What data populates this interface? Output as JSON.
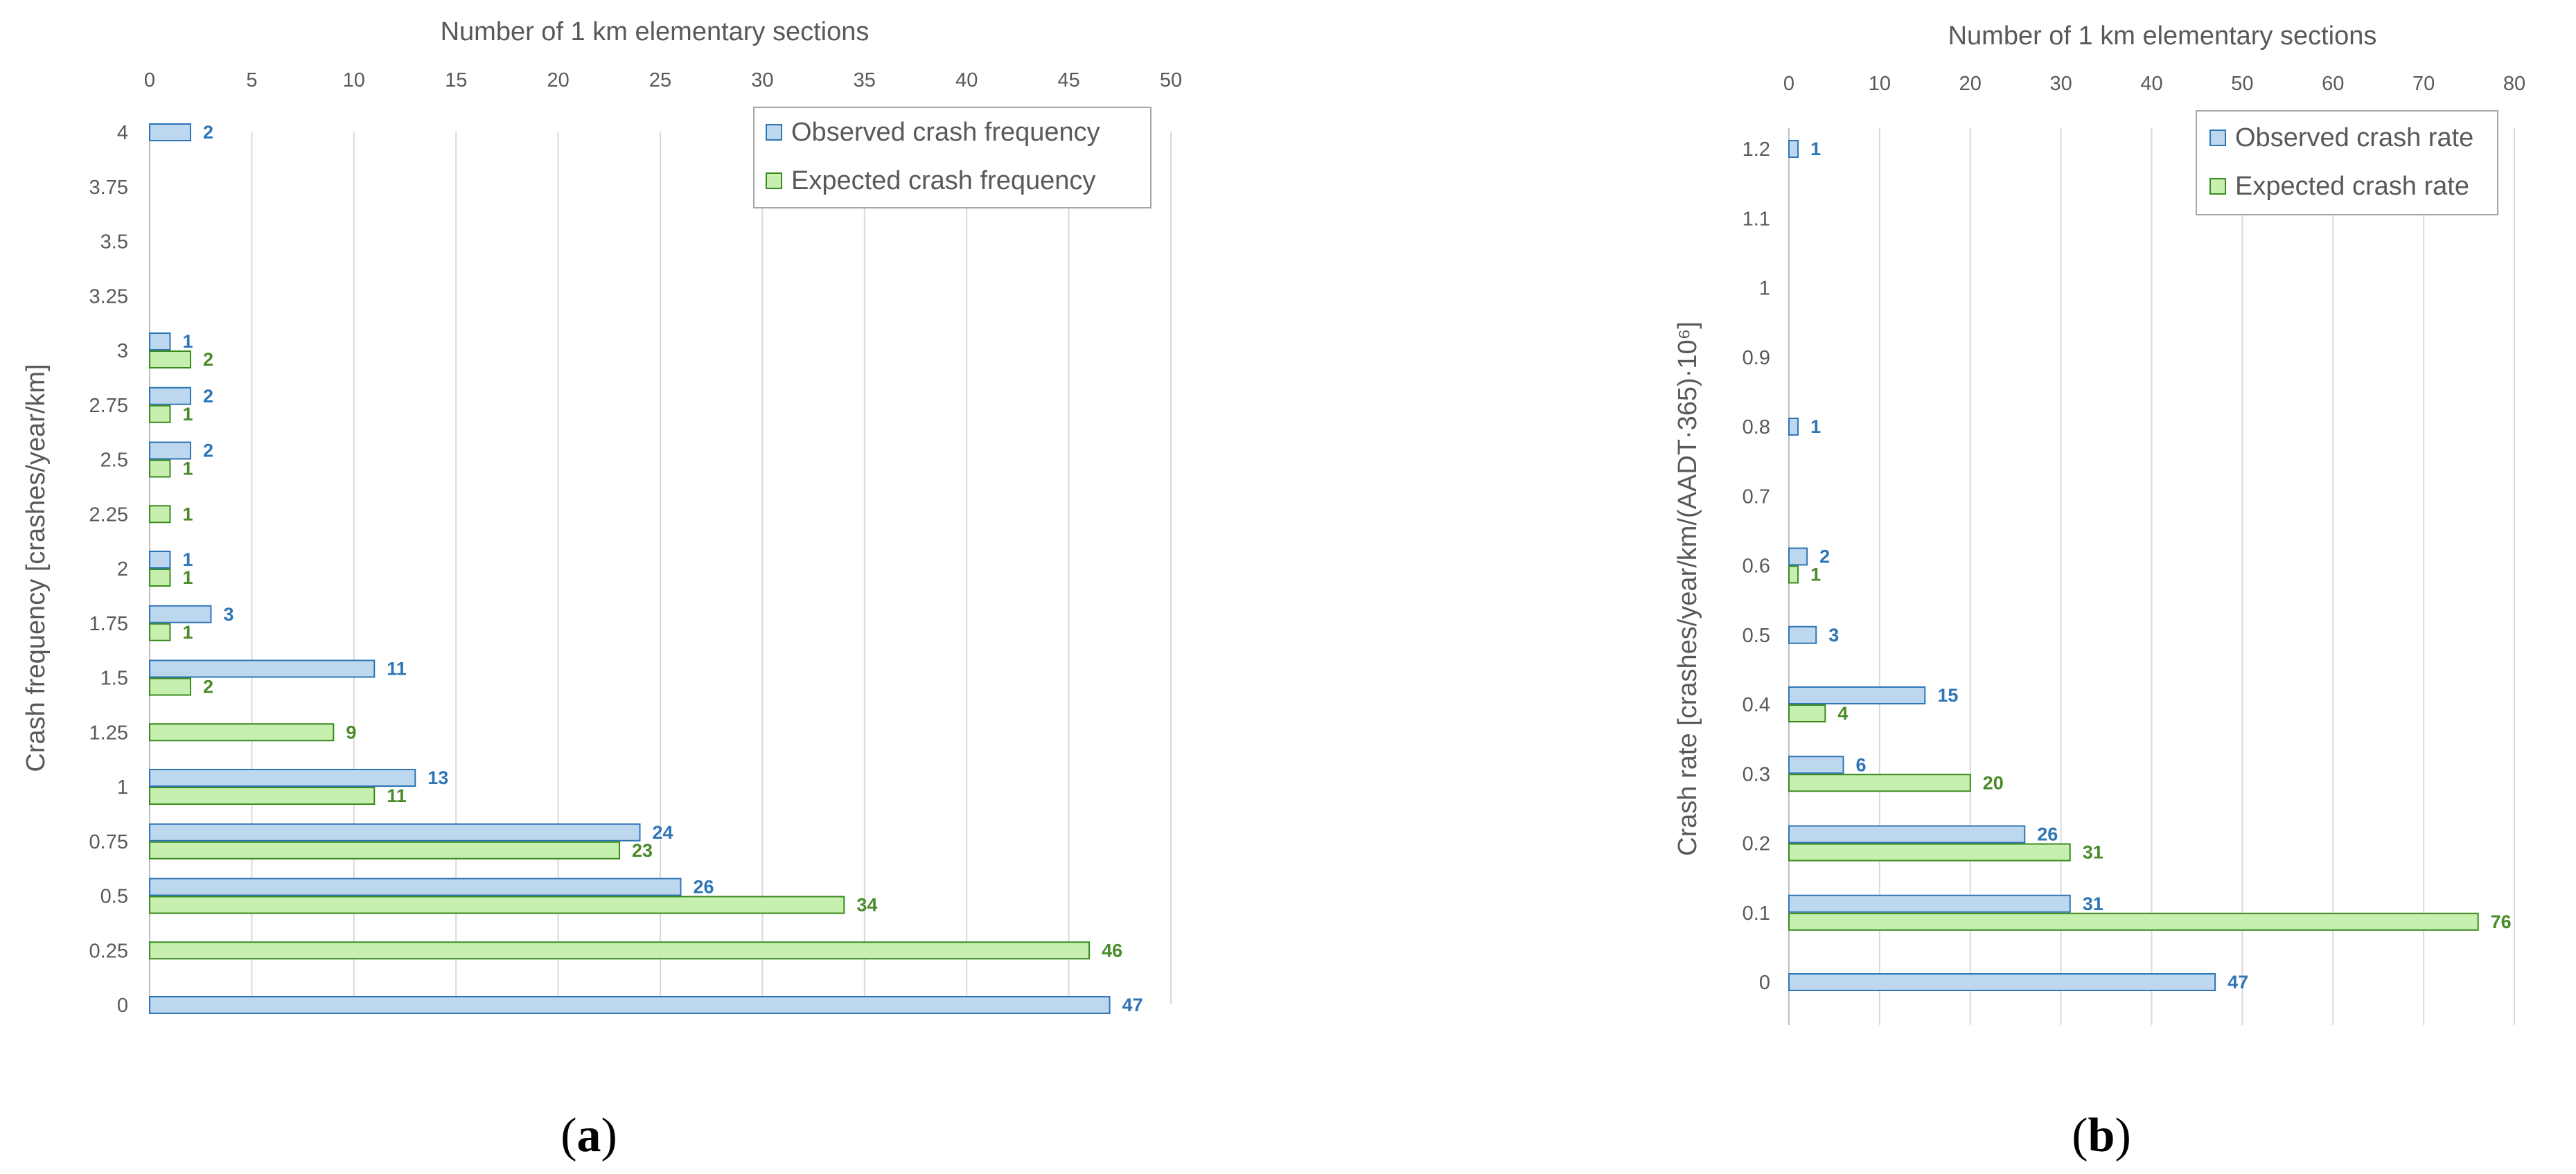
{
  "colors": {
    "observed_fill": "#BDD7EE",
    "observed_stroke": "#2E75B6",
    "observed_label": "#2E75B6",
    "expected_fill": "#C6EFB0",
    "expected_stroke": "#3A8A1E",
    "expected_label": "#4A8A2A",
    "grid": "#D9D9D9",
    "text": "#595959"
  },
  "panel_labels": {
    "a": {
      "open": "(",
      "letter": "a",
      "close": ")"
    },
    "b": {
      "open": "(",
      "letter": "b",
      "close": ")"
    }
  },
  "chart_data": [
    {
      "id": "a",
      "type": "bar",
      "orientation": "horizontal",
      "title": "",
      "xlabel": "Number of 1 km elementary sections",
      "ylabel": "Crash frequency [crashes/year/km]",
      "xlim": [
        0,
        50
      ],
      "xticks": [
        0,
        5,
        10,
        15,
        20,
        25,
        30,
        35,
        40,
        45,
        50
      ],
      "categories": [
        "0",
        "0.25",
        "0.5",
        "0.75",
        "1",
        "1.25",
        "1.5",
        "1.75",
        "2",
        "2.25",
        "2.5",
        "2.75",
        "3",
        "3.25",
        "3.5",
        "3.75",
        "4"
      ],
      "series": [
        {
          "name": "Observed crash frequency",
          "key": "observed",
          "values": [
            47,
            null,
            26,
            24,
            13,
            null,
            11,
            3,
            1,
            null,
            2,
            2,
            1,
            null,
            null,
            null,
            2
          ]
        },
        {
          "name": "Expected crash frequency",
          "key": "expected",
          "values": [
            null,
            46,
            34,
            23,
            11,
            9,
            2,
            1,
            1,
            1,
            1,
            1,
            2,
            null,
            null,
            null,
            null
          ]
        }
      ],
      "legend_position": "top-right",
      "grid": "vertical"
    },
    {
      "id": "b",
      "type": "bar",
      "orientation": "horizontal",
      "title": "",
      "xlabel": "Number of 1 km elementary sections",
      "ylabel": "Crash rate [crashes/year/km/(AADT·365)·10⁶]",
      "xlim": [
        0,
        80
      ],
      "xticks": [
        0,
        10,
        20,
        30,
        40,
        50,
        60,
        70,
        80
      ],
      "categories": [
        "0",
        "0.1",
        "0.2",
        "0.3",
        "0.4",
        "0.5",
        "0.6",
        "0.7",
        "0.8",
        "0.9",
        "1",
        "1.1",
        "1.2"
      ],
      "series": [
        {
          "name": "Observed crash rate",
          "key": "observed",
          "values": [
            47,
            31,
            26,
            6,
            15,
            3,
            2,
            null,
            1,
            null,
            null,
            null,
            1
          ]
        },
        {
          "name": "Expected crash rate",
          "key": "expected",
          "values": [
            null,
            76,
            31,
            20,
            4,
            null,
            1,
            null,
            null,
            null,
            null,
            null,
            null
          ]
        }
      ],
      "legend_position": "top-right",
      "grid": "vertical"
    }
  ]
}
